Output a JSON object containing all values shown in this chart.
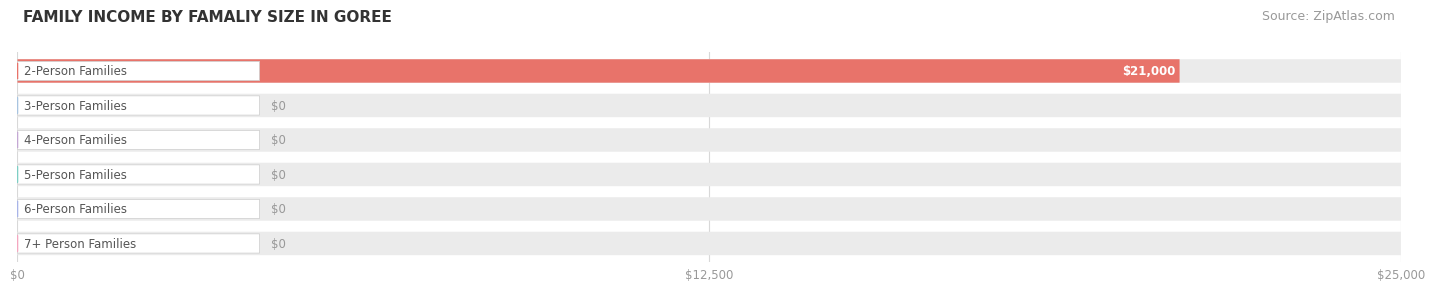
{
  "title": "FAMILY INCOME BY FAMALIY SIZE IN GOREE",
  "source": "Source: ZipAtlas.com",
  "categories": [
    "2-Person Families",
    "3-Person Families",
    "4-Person Families",
    "5-Person Families",
    "6-Person Families",
    "7+ Person Families"
  ],
  "values": [
    21000,
    0,
    0,
    0,
    0,
    0
  ],
  "bar_colors": [
    "#e8736a",
    "#a8c4e0",
    "#c4a8d4",
    "#7ecec4",
    "#a8b4e8",
    "#f4a7c0"
  ],
  "value_labels": [
    "$21,000",
    "$0",
    "$0",
    "$0",
    "$0",
    "$0"
  ],
  "xlim": [
    0,
    25000
  ],
  "xticks": [
    0,
    12500,
    25000
  ],
  "xtick_labels": [
    "$0",
    "$12,500",
    "$25,000"
  ],
  "background_color": "#ffffff",
  "bar_bg_color": "#ebebeb",
  "grid_color": "#d8d8d8",
  "title_fontsize": 11,
  "source_fontsize": 9,
  "label_fontsize": 8.5,
  "value_fontsize": 8.5
}
